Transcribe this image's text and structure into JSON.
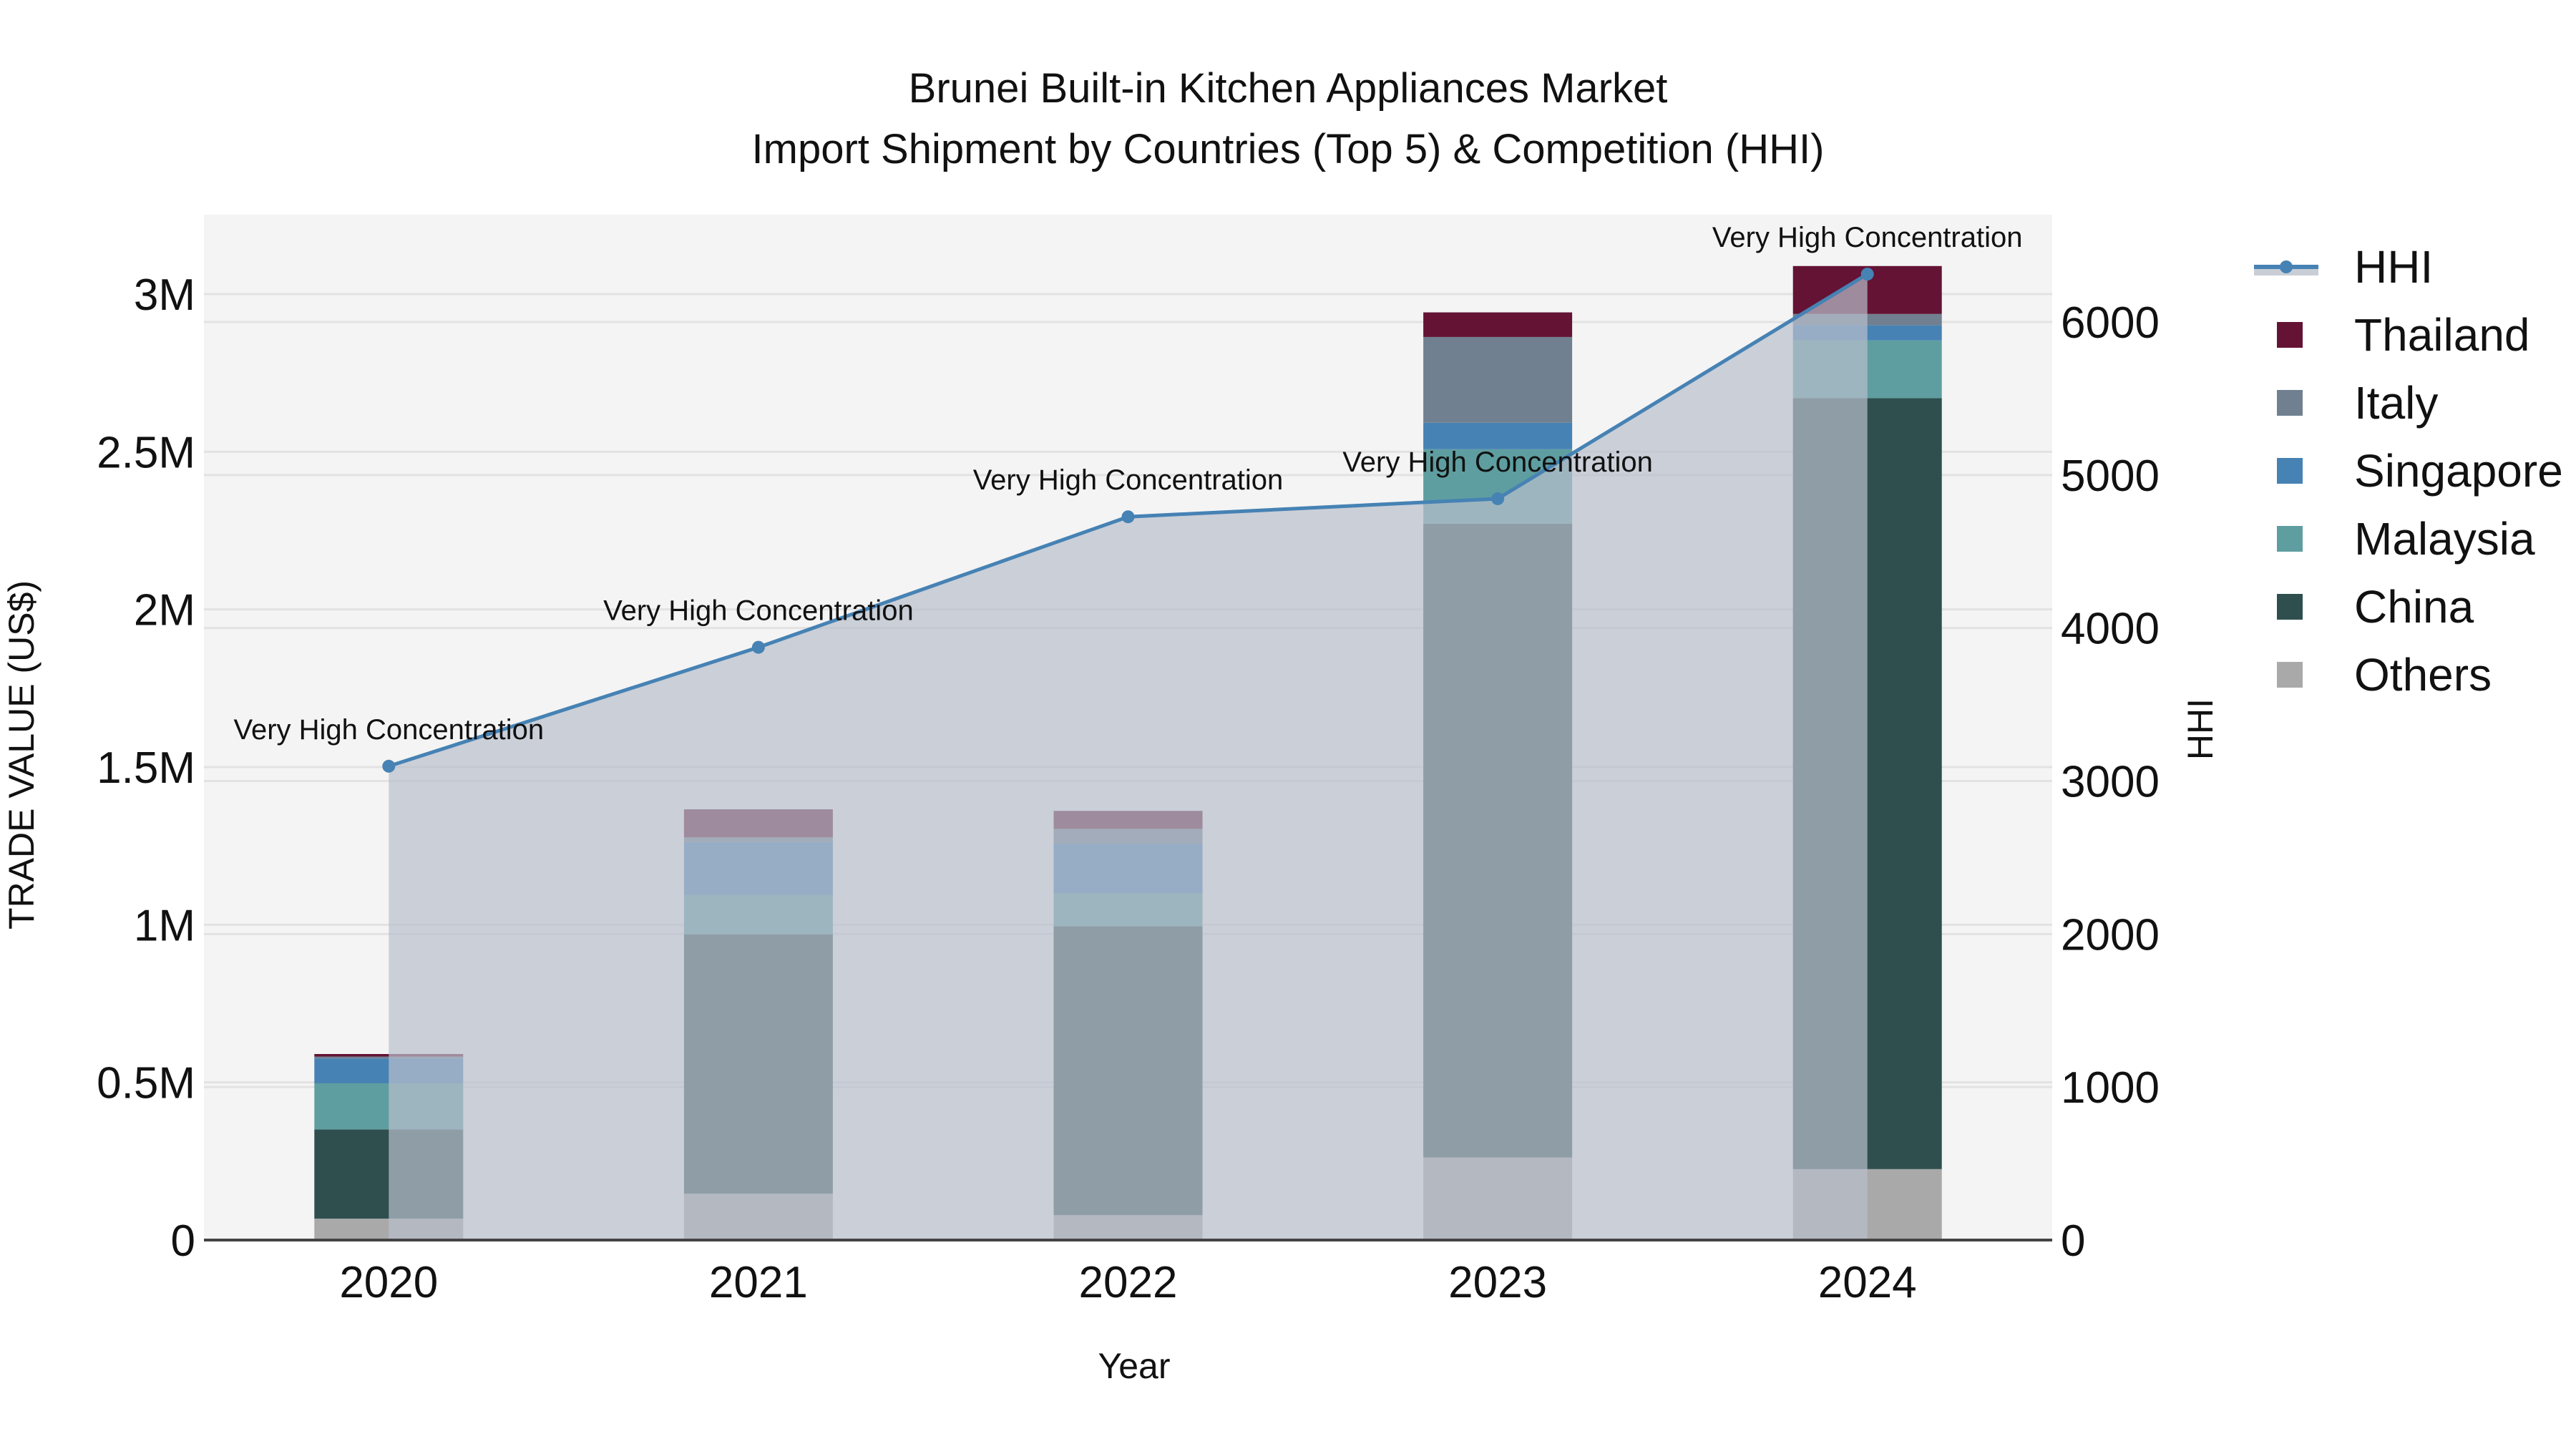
{
  "chart_data": {
    "type": "bar",
    "stacked": true,
    "title": "Brunei Built-in Kitchen Appliances Market",
    "subtitle": "Import Shipment by Countries (Top 5) & Competition (HHI)",
    "xlabel": "Year",
    "ylabel": "TRADE VALUE (US$)",
    "y2label": "HHI",
    "categories": [
      "2020",
      "2021",
      "2022",
      "2023",
      "2024"
    ],
    "ylim": [
      0,
      3250000
    ],
    "y_ticks": [
      0,
      500000,
      1000000,
      1500000,
      2000000,
      2500000,
      3000000
    ],
    "y_tick_labels": [
      "0",
      "0.5M",
      "1M",
      "1.5M",
      "2M",
      "2.5M",
      "3M"
    ],
    "y2lim": [
      0,
      6700
    ],
    "y2_ticks": [
      0,
      1000,
      2000,
      3000,
      4000,
      5000,
      6000
    ],
    "y2_tick_labels": [
      "0",
      "1000",
      "2000",
      "3000",
      "4000",
      "5000",
      "6000"
    ],
    "grid": true,
    "legend_position": "right",
    "series": [
      {
        "name": "Others",
        "color": "#a9a9a9",
        "values": [
          68000,
          147000,
          79000,
          262000,
          225000
        ]
      },
      {
        "name": "China",
        "color": "#2f4f4f",
        "values": [
          283000,
          822000,
          916000,
          2010000,
          2445000
        ]
      },
      {
        "name": "Malaysia",
        "color": "#5f9ea0",
        "values": [
          146000,
          125000,
          104000,
          236000,
          183000
        ]
      },
      {
        "name": "Singapore",
        "color": "#4682b4",
        "values": [
          79000,
          168000,
          158000,
          84000,
          48000
        ]
      },
      {
        "name": "Italy",
        "color": "#708090",
        "values": [
          6000,
          15000,
          47000,
          272000,
          36000
        ]
      },
      {
        "name": "Thailand",
        "color": "#641334",
        "values": [
          8000,
          89000,
          57000,
          78000,
          152000
        ]
      }
    ],
    "line_series": {
      "name": "HHI",
      "axis": "y2",
      "color": "#4682b4",
      "fill_color": "#c9ced6",
      "values": [
        3097,
        3874,
        4727,
        4845,
        6313
      ],
      "annotations": [
        "Very High Concentration",
        "Very High Concentration",
        "Very High Concentration",
        "Very High Concentration",
        "Very High Concentration"
      ]
    }
  },
  "legend": {
    "items": [
      {
        "label": "HHI",
        "kind": "line"
      },
      {
        "label": "Thailand",
        "color": "#641334"
      },
      {
        "label": "Italy",
        "color": "#708090"
      },
      {
        "label": "Singapore",
        "color": "#4682b4"
      },
      {
        "label": "Malaysia",
        "color": "#5f9ea0"
      },
      {
        "label": "China",
        "color": "#2f4f4f"
      },
      {
        "label": "Others",
        "color": "#a9a9a9"
      }
    ]
  }
}
